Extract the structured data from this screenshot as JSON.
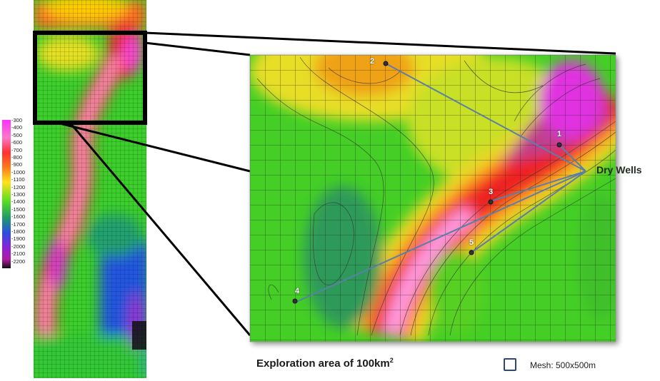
{
  "caption": {
    "text": "Exploration area of 100km",
    "superscript": "2"
  },
  "mesh_legend": {
    "text": "Mesh: 500x500m"
  },
  "annotation": {
    "text": "Dry Wells"
  },
  "colorbar": {
    "ticks": [
      "-300",
      "-400",
      "-500",
      "-600",
      "-700",
      "-800",
      "-900",
      "-1000",
      "-1100",
      "-1200",
      "-1300",
      "-1400",
      "-1500",
      "-1600",
      "-1700",
      "-1800",
      "-1900",
      "-2000",
      "-2100",
      "-2200"
    ]
  },
  "wells": [
    {
      "label": "1"
    },
    {
      "label": "2"
    },
    {
      "label": "3"
    },
    {
      "label": "4"
    },
    {
      "label": "5"
    }
  ],
  "colors": {
    "zoom_frame": "#000000",
    "pointer_lines": "#5b7fa6",
    "mesh_square": "#2f4a6e"
  }
}
